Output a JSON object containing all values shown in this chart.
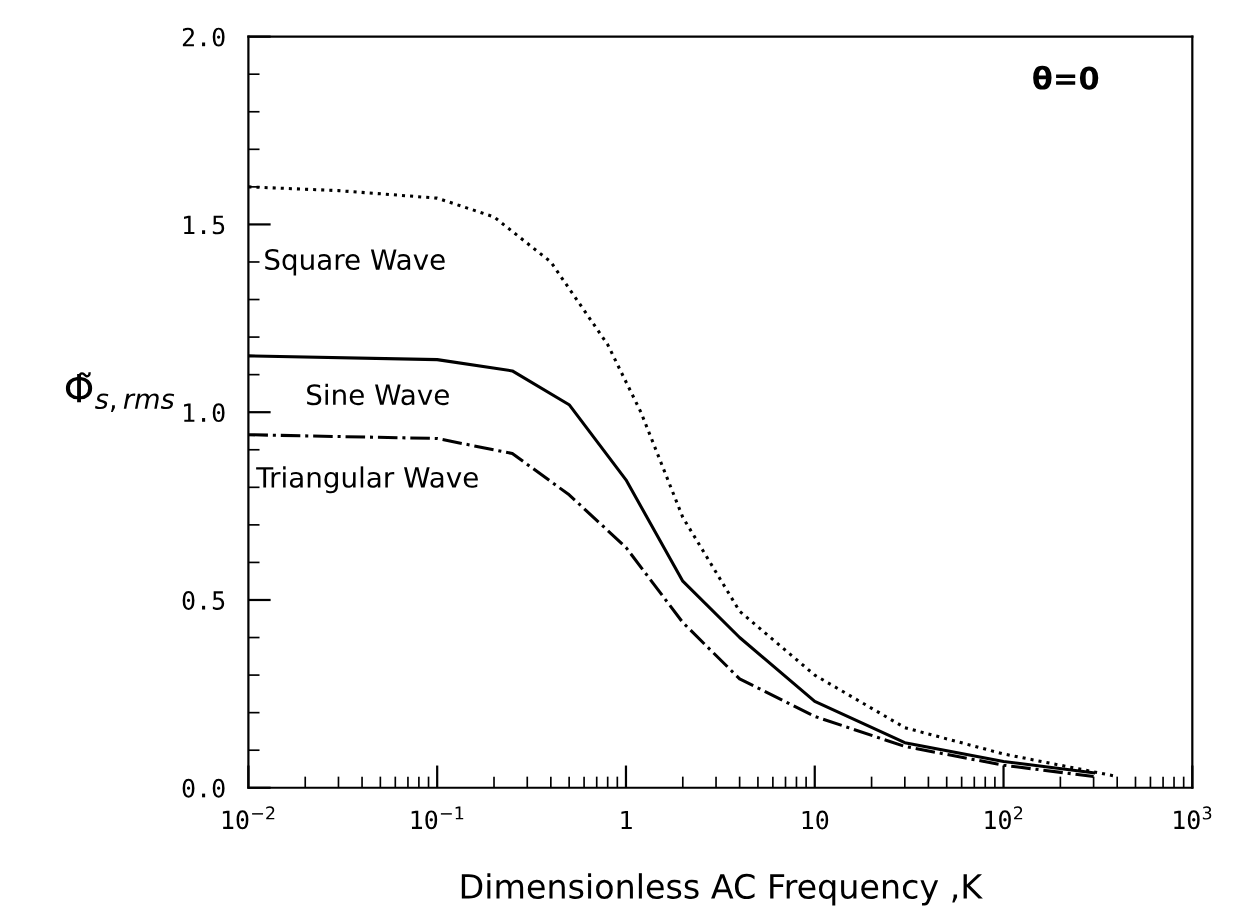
{
  "chart_data": {
    "type": "line",
    "xlabel": "Dimensionless AC Frequency ,K",
    "ylabel": "Φ̃$_{s,rms}$",
    "log": "x",
    "xlim": [
      0.01,
      1000
    ],
    "ylim": [
      0,
      2.0
    ],
    "xticks": [
      {
        "value": 0.01,
        "label": "10$^{−2}$"
      },
      {
        "value": 0.1,
        "label": "10$^{−1}$"
      },
      1,
      10,
      {
        "value": 100,
        "label": "10$^{2}$"
      },
      {
        "value": 1000,
        "label": "10$^{3}$"
      }
    ],
    "yticks": [
      {
        "value": 0,
        "label": "0.0"
      },
      0.5,
      {
        "value": 1,
        "label": "1.0"
      },
      1.5,
      {
        "value": 2,
        "label": "2.0"
      }
    ],
    "annotations": [
      "θ=0"
    ],
    "grid": false,
    "series": [
      {
        "name": "Square Wave",
        "color": "#000000",
        "line_style": "dotted",
        "x": [
          0.01,
          0.03,
          0.1,
          0.2,
          0.4,
          0.8,
          1.2,
          2,
          4,
          10,
          30,
          100,
          400
        ],
        "values": [
          1.6,
          1.59,
          1.57,
          1.52,
          1.4,
          1.18,
          1.0,
          0.72,
          0.47,
          0.3,
          0.16,
          0.09,
          0.03
        ]
      },
      {
        "name": "Sine Wave",
        "color": "#000000",
        "line_style": "solid",
        "x": [
          0.01,
          0.1,
          0.25,
          0.5,
          1,
          2,
          4,
          10,
          30,
          100,
          300
        ],
        "values": [
          1.15,
          1.14,
          1.11,
          1.02,
          0.82,
          0.55,
          0.4,
          0.23,
          0.12,
          0.07,
          0.04
        ]
      },
      {
        "name": "Triangular Wave",
        "color": "#000000",
        "line_style": "dashdot",
        "x": [
          0.01,
          0.1,
          0.25,
          0.5,
          1,
          2,
          4,
          10,
          30,
          100,
          300
        ],
        "values": [
          0.94,
          0.93,
          0.89,
          0.78,
          0.64,
          0.44,
          0.29,
          0.19,
          0.11,
          0.06,
          0.03
        ]
      }
    ]
  }
}
